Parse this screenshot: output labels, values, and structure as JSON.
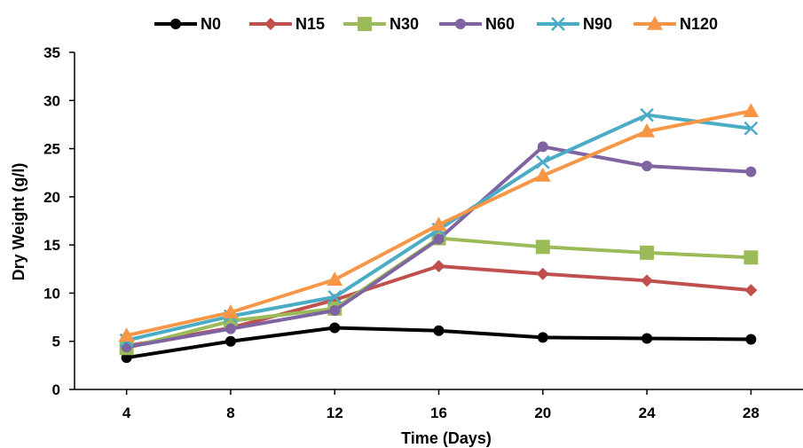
{
  "chart_data": {
    "type": "line",
    "xlabel": "Time (Days)",
    "ylabel": "Dry Weight (g/l)",
    "ylim": [
      0,
      35
    ],
    "yticks": [
      0,
      5,
      10,
      15,
      20,
      25,
      30,
      35
    ],
    "x": [
      4,
      8,
      12,
      16,
      20,
      24,
      28
    ],
    "legend_position": "top",
    "grid": false,
    "series": [
      {
        "name": "N0",
        "color": "#000000",
        "marker": "circle",
        "values": [
          3.3,
          5.0,
          6.4,
          6.1,
          5.4,
          5.3,
          5.2
        ]
      },
      {
        "name": "N15",
        "color": "#C0504D",
        "marker": "diamond",
        "values": [
          4.5,
          6.4,
          9.3,
          12.8,
          12.0,
          11.3,
          10.3
        ]
      },
      {
        "name": "N30",
        "color": "#9BBB59",
        "marker": "square",
        "values": [
          4.3,
          7.1,
          8.4,
          15.7,
          14.8,
          14.2,
          13.7
        ]
      },
      {
        "name": "N60",
        "color": "#8064A2",
        "marker": "circle",
        "values": [
          4.4,
          6.3,
          8.2,
          15.6,
          25.2,
          23.2,
          22.6
        ]
      },
      {
        "name": "N90",
        "color": "#4BACC6",
        "marker": "x",
        "values": [
          5.1,
          7.6,
          9.6,
          16.6,
          23.6,
          28.5,
          27.1
        ]
      },
      {
        "name": "N120",
        "color": "#F79646",
        "marker": "triangle",
        "values": [
          5.6,
          8.0,
          11.4,
          17.1,
          22.2,
          26.8,
          28.9
        ]
      }
    ]
  }
}
